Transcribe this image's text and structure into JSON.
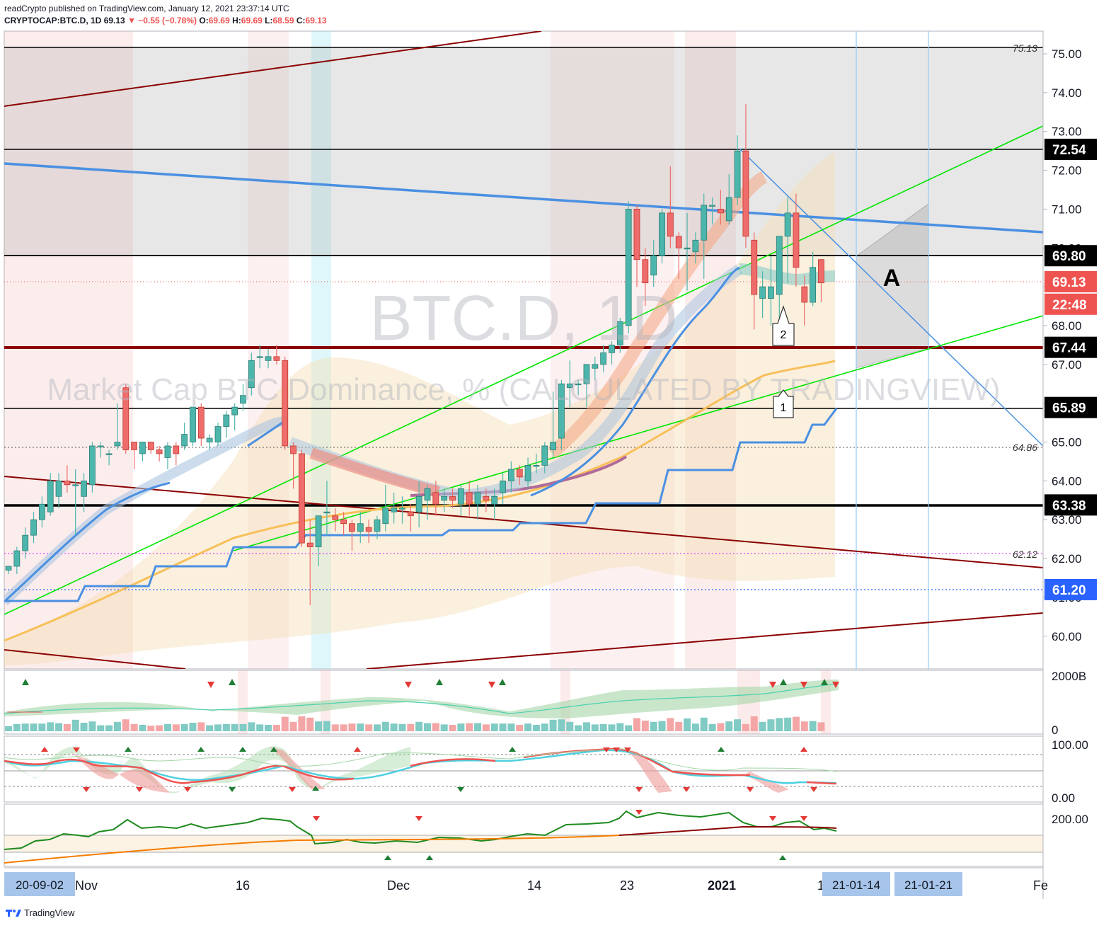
{
  "header": {
    "publisher": "readCrypto",
    "published_text": "published on TradingView.com, January 12, 2021 23:37:14 UTC",
    "symbol": "CRYPTOCAP:BTC.D, 1D",
    "last": "69.13",
    "change_arrow": "▼",
    "change": "−0.55 (−0.78%)",
    "o_label": "O:",
    "o": "69.69",
    "h_label": "H:",
    "h": "69.69",
    "l_label": "L:",
    "l": "68.59",
    "c_label": "C:",
    "c": "69.13"
  },
  "watermark": {
    "line1": "BTC.D, 1D",
    "line2": "Market Cap BTC Dominance, % (CALCULATED BY TRADINGVIEW)"
  },
  "footer": {
    "brand": "TradingView",
    "logo_icon": "tradingview-logo-icon"
  },
  "colors": {
    "up": "#26a69a",
    "down": "#ef5350",
    "blue": "#4a90e2",
    "green_line": "#00e600",
    "channel": "#8b0000",
    "orange_ma": "#f8c05a",
    "purple_ma": "#b06a9a"
  },
  "chart_data": {
    "type": "candlestick",
    "symbol": "CRYPTOCAP:BTC.D",
    "interval": "1D",
    "ylim": [
      59.2,
      75.6
    ],
    "y_ticks": [
      "75.00",
      "74.00",
      "73.00",
      "72.00",
      "71.00",
      "70.00",
      "69.00",
      "68.00",
      "67.00",
      "66.00",
      "65.00",
      "64.00",
      "63.00",
      "62.00",
      "61.00",
      "60.00"
    ],
    "x_labels": [
      "20-09-02",
      "Nov",
      "16",
      "Dec",
      "14",
      "23",
      "2021",
      "1",
      "21-01-14",
      "21-01-21",
      "Fe"
    ],
    "price_badges": [
      {
        "label": "72.54",
        "value": 72.54,
        "style": "black"
      },
      {
        "label": "69.80",
        "value": 69.8,
        "style": "black"
      },
      {
        "label": "69.13",
        "value": 69.13,
        "style": "red"
      },
      {
        "label": "22:48",
        "value": 68.55,
        "style": "red"
      },
      {
        "label": "67.44",
        "value": 67.44,
        "style": "black"
      },
      {
        "label": "65.89",
        "value": 65.89,
        "style": "black"
      },
      {
        "label": "63.38",
        "value": 63.38,
        "style": "black"
      },
      {
        "label": "61.20",
        "value": 61.2,
        "style": "blue"
      }
    ],
    "level_labels": [
      {
        "label": "75.13",
        "value": 75.13
      },
      {
        "label": "64.86",
        "value": 64.86
      },
      {
        "label": "62.12",
        "value": 62.12
      }
    ],
    "annotations": [
      "A",
      "1",
      "2"
    ],
    "candles": [
      [
        61.7,
        61.8,
        61.6,
        61.8
      ],
      [
        61.8,
        62.3,
        61.6,
        62.2
      ],
      [
        62.2,
        62.8,
        62.0,
        62.6
      ],
      [
        62.6,
        63.2,
        62.4,
        63.0
      ],
      [
        63.0,
        63.6,
        62.8,
        63.4
      ],
      [
        63.2,
        64.2,
        63.1,
        64.0
      ],
      [
        63.6,
        64.2,
        63.3,
        64.0
      ],
      [
        64.0,
        64.4,
        63.7,
        63.9
      ],
      [
        63.9,
        64.3,
        62.6,
        63.9
      ],
      [
        63.6,
        64.2,
        63.2,
        64.0
      ],
      [
        63.9,
        65.0,
        63.7,
        64.9
      ],
      [
        64.9,
        65.0,
        64.6,
        64.9
      ],
      [
        64.7,
        64.8,
        64.4,
        64.7
      ],
      [
        64.9,
        66.0,
        64.8,
        65.0
      ],
      [
        66.4,
        66.5,
        64.7,
        64.8
      ],
      [
        65.0,
        65.0,
        64.3,
        64.8
      ],
      [
        64.7,
        65.0,
        64.5,
        65.0
      ],
      [
        65.0,
        65.0,
        64.7,
        64.8
      ],
      [
        64.8,
        64.9,
        64.5,
        64.7
      ],
      [
        64.6,
        65.0,
        64.3,
        64.9
      ],
      [
        64.9,
        65.0,
        64.4,
        64.7
      ],
      [
        64.9,
        65.5,
        64.8,
        65.2
      ],
      [
        65.0,
        65.9,
        64.9,
        65.9
      ],
      [
        65.9,
        66.0,
        64.9,
        65.1
      ],
      [
        65.0,
        65.2,
        64.8,
        65.1
      ],
      [
        65.0,
        65.5,
        64.9,
        65.4
      ],
      [
        65.4,
        65.8,
        65.1,
        65.7
      ],
      [
        65.7,
        66.0,
        65.3,
        65.9
      ],
      [
        66.0,
        66.5,
        65.8,
        66.2
      ],
      [
        66.4,
        67.3,
        66.2,
        67.1
      ],
      [
        67.2,
        67.5,
        66.9,
        67.2
      ],
      [
        67.1,
        67.4,
        66.9,
        67.2
      ],
      [
        67.2,
        67.5,
        67.0,
        67.1
      ],
      [
        67.1,
        67.2,
        64.8,
        64.9
      ],
      [
        64.9,
        65.0,
        63.8,
        64.7
      ],
      [
        64.7,
        64.8,
        62.3,
        62.4
      ],
      [
        62.4,
        63.0,
        60.8,
        62.3
      ],
      [
        62.3,
        63.1,
        61.8,
        63.1
      ],
      [
        63.2,
        64.0,
        62.6,
        63.2
      ],
      [
        63.1,
        63.3,
        62.7,
        63.0
      ],
      [
        63.0,
        63.2,
        62.6,
        62.9
      ],
      [
        62.9,
        63.0,
        62.2,
        62.7
      ],
      [
        62.7,
        63.2,
        62.4,
        62.9
      ],
      [
        62.8,
        63.0,
        62.4,
        62.7
      ],
      [
        62.7,
        63.1,
        62.5,
        63.0
      ],
      [
        62.9,
        63.9,
        62.7,
        63.3
      ],
      [
        63.2,
        63.7,
        62.9,
        63.3
      ],
      [
        63.3,
        63.6,
        62.9,
        63.3
      ],
      [
        63.2,
        63.4,
        62.7,
        63.1
      ],
      [
        63.2,
        64.0,
        62.8,
        63.6
      ],
      [
        63.5,
        63.9,
        63.0,
        63.8
      ],
      [
        63.7,
        64.0,
        63.1,
        63.4
      ],
      [
        63.5,
        63.8,
        63.2,
        63.6
      ],
      [
        63.6,
        63.8,
        63.3,
        63.5
      ],
      [
        63.4,
        63.9,
        63.1,
        63.8
      ],
      [
        63.7,
        64.0,
        63.1,
        63.4
      ],
      [
        63.4,
        63.9,
        63.0,
        63.7
      ],
      [
        63.6,
        63.8,
        63.2,
        63.5
      ],
      [
        63.4,
        63.8,
        63.0,
        63.6
      ],
      [
        63.7,
        64.2,
        63.4,
        64.0
      ],
      [
        64.0,
        64.5,
        63.7,
        64.3
      ],
      [
        64.3,
        64.4,
        63.9,
        64.1
      ],
      [
        64.0,
        64.6,
        63.8,
        64.4
      ],
      [
        64.4,
        64.7,
        64.2,
        64.4
      ],
      [
        64.4,
        65.0,
        64.2,
        64.9
      ],
      [
        64.8,
        66.3,
        64.6,
        65.0
      ],
      [
        65.1,
        66.6,
        64.8,
        66.5
      ],
      [
        66.4,
        67.1,
        65.9,
        66.5
      ],
      [
        66.5,
        66.6,
        66.2,
        66.5
      ],
      [
        66.5,
        67.0,
        65.9,
        67.0
      ],
      [
        66.9,
        67.2,
        66.6,
        67.0
      ],
      [
        67.0,
        67.5,
        66.8,
        67.3
      ],
      [
        67.3,
        67.6,
        67.0,
        67.5
      ],
      [
        67.5,
        68.2,
        67.3,
        68.1
      ],
      [
        68.0,
        71.2,
        67.8,
        71.0
      ],
      [
        71.0,
        71.1,
        69.0,
        69.7
      ],
      [
        69.7,
        70.0,
        68.5,
        69.1
      ],
      [
        69.3,
        70.2,
        69.0,
        69.8
      ],
      [
        69.8,
        71.0,
        69.6,
        70.9
      ],
      [
        70.9,
        72.1,
        70.0,
        70.3
      ],
      [
        70.3,
        70.4,
        69.2,
        70.0
      ],
      [
        70.0,
        70.9,
        68.9,
        70.0
      ],
      [
        69.9,
        70.4,
        69.6,
        70.2
      ],
      [
        70.2,
        71.4,
        69.2,
        71.1
      ],
      [
        71.1,
        71.3,
        70.6,
        71.1
      ],
      [
        71.0,
        71.5,
        70.6,
        70.9
      ],
      [
        70.7,
        71.9,
        70.6,
        71.3
      ],
      [
        71.3,
        72.9,
        71.1,
        72.5
      ],
      [
        72.5,
        73.7,
        70.0,
        70.3
      ],
      [
        70.2,
        70.4,
        67.9,
        68.8
      ],
      [
        68.7,
        69.4,
        68.2,
        69.0
      ],
      [
        68.7,
        69.8,
        68.0,
        69.0
      ],
      [
        68.8,
        70.2,
        68.1,
        70.3
      ],
      [
        70.3,
        71.3,
        69.1,
        70.9
      ],
      [
        70.9,
        71.4,
        69.0,
        69.5
      ],
      [
        69.0,
        69.3,
        68.0,
        68.6
      ],
      [
        68.6,
        69.9,
        68.5,
        69.5
      ],
      [
        69.7,
        69.7,
        68.6,
        69.1
      ]
    ],
    "indicators": [
      {
        "name": "volume",
        "scale_labels": [
          "2000B",
          "0"
        ]
      },
      {
        "name": "oscillator",
        "scale_labels": [
          "100.00",
          "0.00"
        ]
      },
      {
        "name": "index",
        "scale_labels": [
          "200.00"
        ]
      }
    ]
  }
}
